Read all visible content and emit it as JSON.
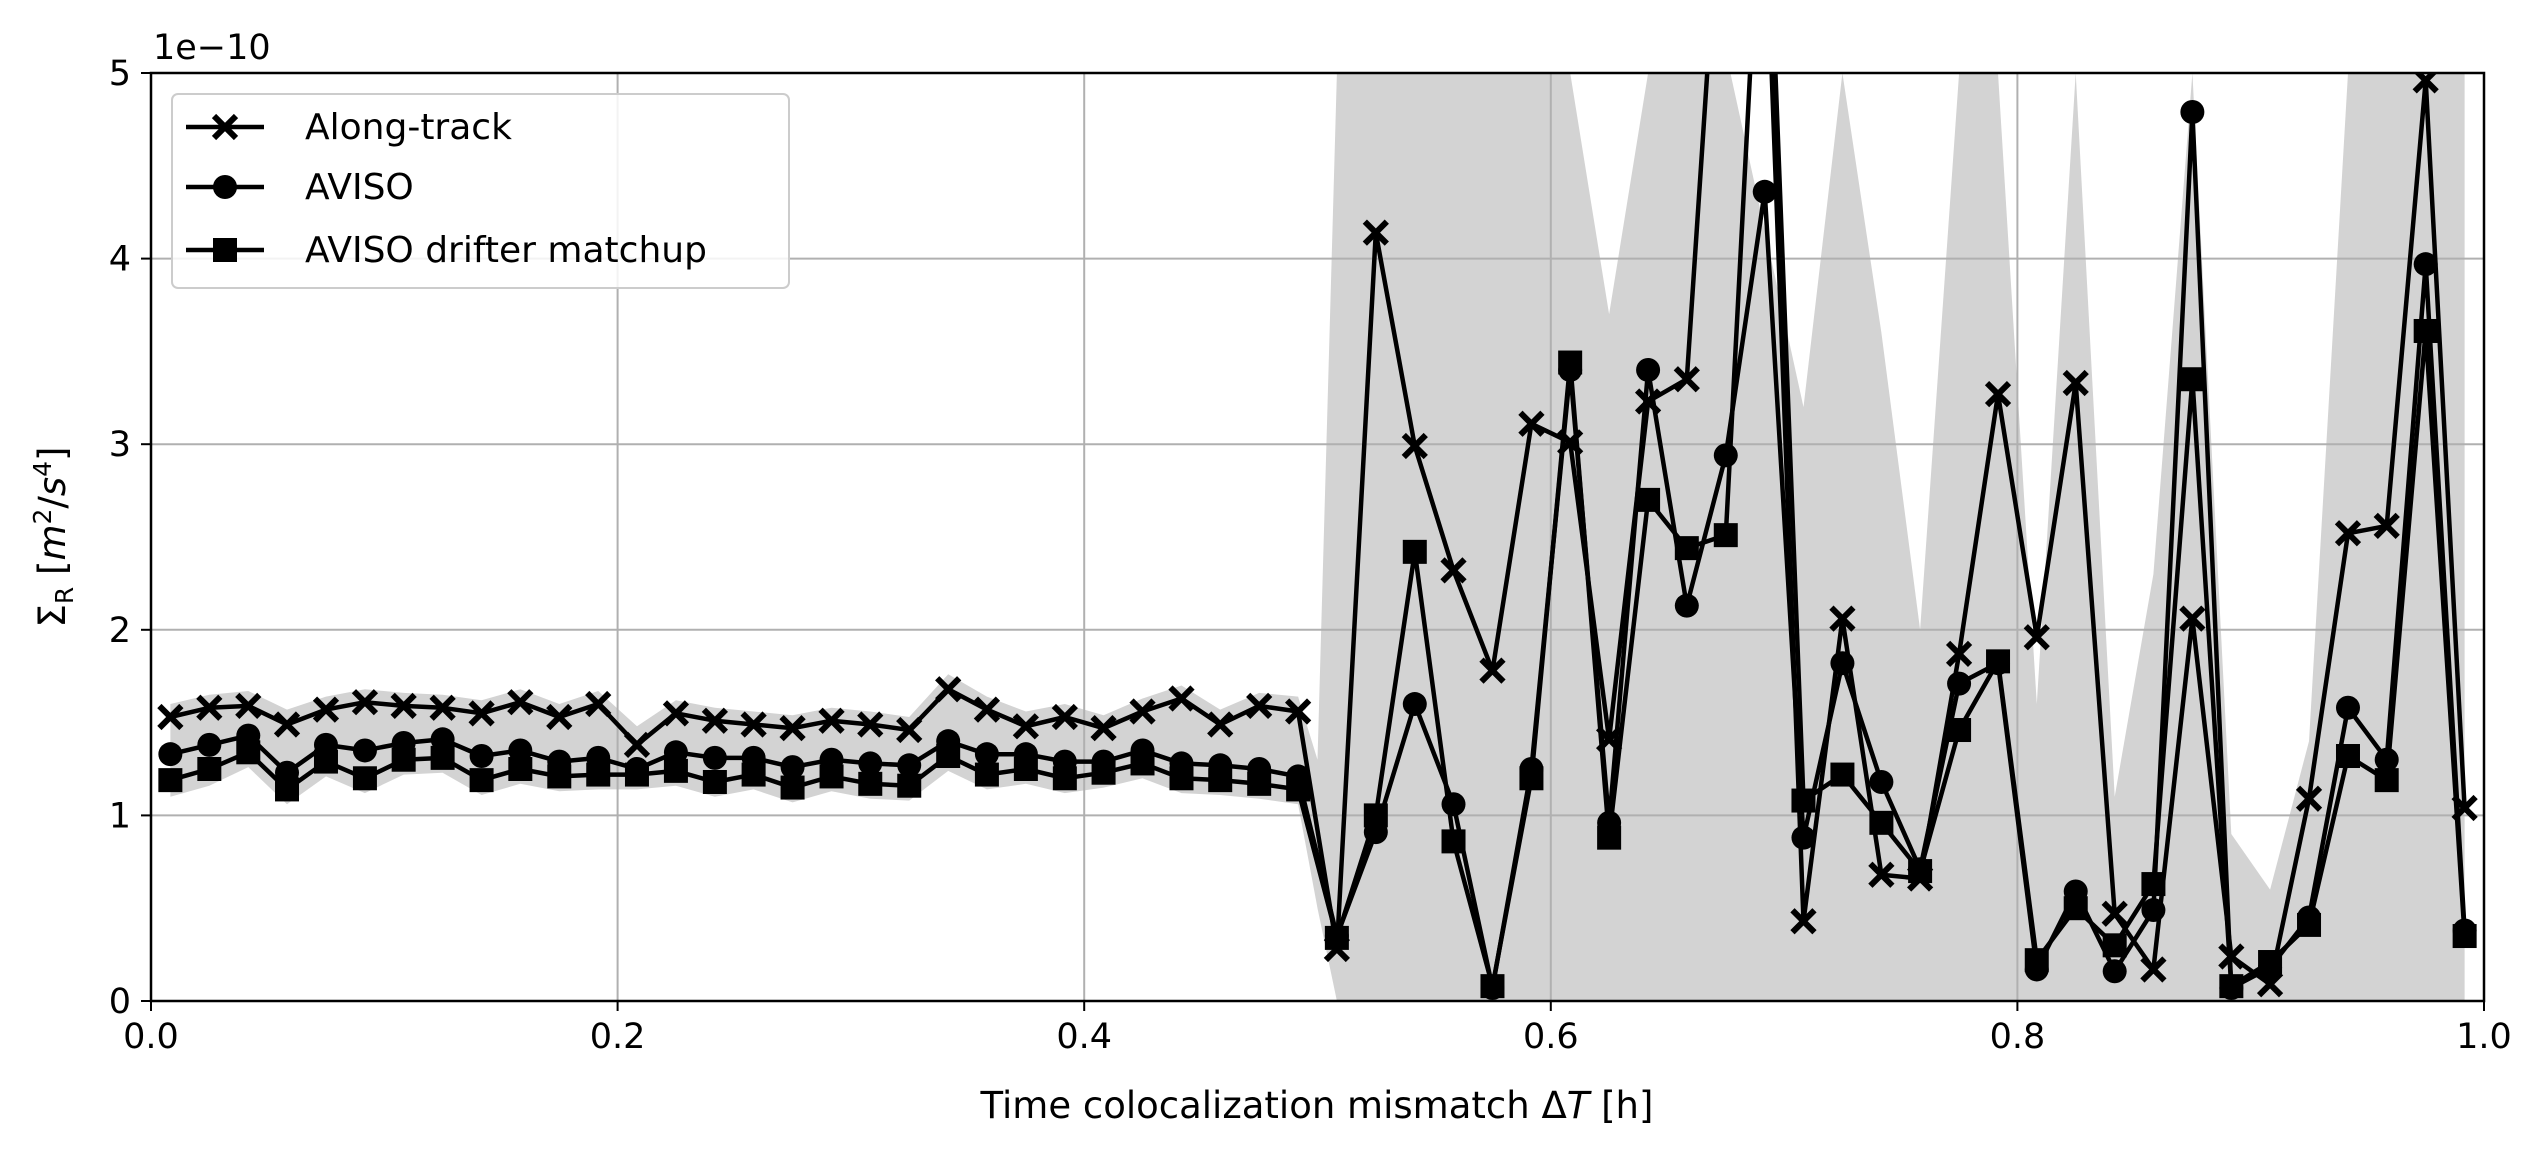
{
  "chart_data": {
    "type": "line",
    "title": "",
    "xlabel": "Time colocalization mismatch ΔT [h]",
    "ylabel": "Σ_R [m²/s⁴]",
    "ylabel_parts": {
      "main": "Σ",
      "sub": "R",
      "units_open": " [",
      "m": "m",
      "m_exp": "2",
      "slash": "/",
      "s": "s",
      "s_exp": "4",
      "units_close": "]"
    },
    "xlabel_parts": {
      "prefix": "Time colocalization mismatch ",
      "delta": "Δ",
      "T": "T",
      "suffix": " [h]"
    },
    "y_offset_text": "1e−10",
    "xlim": [
      0.0,
      1.0
    ],
    "ylim": [
      0,
      5
    ],
    "y_scale_multiplier": 1e-10,
    "xticks": [
      0.0,
      0.2,
      0.4,
      0.6,
      0.8,
      1.0
    ],
    "xtick_labels": [
      "0.0",
      "0.2",
      "0.4",
      "0.6",
      "0.8",
      "1.0"
    ],
    "yticks": [
      0,
      1,
      2,
      3,
      4,
      5
    ],
    "ytick_labels": [
      "0",
      "1",
      "2",
      "3",
      "4",
      "5"
    ],
    "grid": true,
    "legend_position": "top-left",
    "colors": {
      "line": "#000000",
      "band": "#d3d3d3",
      "grid": "#b0b0b0"
    },
    "x": [
      0.0083,
      0.025,
      0.0417,
      0.0583,
      0.075,
      0.0917,
      0.1083,
      0.125,
      0.1417,
      0.1583,
      0.175,
      0.1917,
      0.2083,
      0.225,
      0.2417,
      0.2583,
      0.275,
      0.2917,
      0.3083,
      0.325,
      0.3417,
      0.3583,
      0.375,
      0.3917,
      0.4083,
      0.425,
      0.4417,
      0.4583,
      0.475,
      0.4917,
      0.5083,
      0.525,
      0.5417,
      0.5583,
      0.575,
      0.5917,
      0.6083,
      0.625,
      0.6417,
      0.6583,
      0.675,
      0.6917,
      0.7083,
      0.725,
      0.7417,
      0.7583,
      0.775,
      0.7917,
      0.8083,
      0.825,
      0.8417,
      0.8583,
      0.875,
      0.8917,
      0.9083,
      0.925,
      0.9417,
      0.9583,
      0.975,
      0.9917
    ],
    "series": [
      {
        "name": "Along-track",
        "marker": "x",
        "values": [
          1.53,
          1.58,
          1.59,
          1.49,
          1.57,
          1.61,
          1.59,
          1.58,
          1.55,
          1.61,
          1.53,
          1.6,
          1.38,
          1.55,
          1.51,
          1.49,
          1.47,
          1.51,
          1.49,
          1.46,
          1.68,
          1.57,
          1.48,
          1.53,
          1.47,
          1.56,
          1.63,
          1.49,
          1.59,
          1.56,
          0.28,
          4.14,
          2.99,
          2.32,
          1.78,
          3.11,
          3.01,
          1.41,
          3.23,
          3.35,
          6.5,
          6.0,
          0.43,
          2.06,
          0.68,
          0.66,
          1.87,
          3.27,
          1.96,
          3.33,
          0.47,
          0.17,
          2.06,
          0.24,
          0.09,
          1.09,
          2.52,
          2.56,
          4.96,
          1.04
        ]
      },
      {
        "name": "AVISO",
        "marker": "o",
        "values": [
          1.33,
          1.38,
          1.43,
          1.23,
          1.38,
          1.35,
          1.39,
          1.41,
          1.32,
          1.35,
          1.29,
          1.31,
          1.25,
          1.34,
          1.31,
          1.31,
          1.26,
          1.3,
          1.28,
          1.27,
          1.4,
          1.33,
          1.33,
          1.29,
          1.29,
          1.35,
          1.28,
          1.27,
          1.25,
          1.21,
          0.35,
          0.91,
          1.6,
          1.06,
          0.07,
          1.25,
          3.4,
          0.96,
          3.4,
          2.13,
          2.94,
          4.36,
          0.88,
          1.82,
          1.18,
          0.71,
          1.71,
          1.82,
          0.17,
          0.59,
          0.16,
          0.49,
          4.79,
          0.07,
          0.18,
          0.45,
          1.58,
          1.3,
          3.97,
          0.38
        ]
      },
      {
        "name": "AVISO drifter matchup",
        "marker": "s",
        "values": [
          1.19,
          1.25,
          1.34,
          1.14,
          1.29,
          1.2,
          1.3,
          1.31,
          1.19,
          1.25,
          1.21,
          1.22,
          1.22,
          1.24,
          1.18,
          1.22,
          1.15,
          1.21,
          1.17,
          1.16,
          1.32,
          1.22,
          1.25,
          1.2,
          1.23,
          1.28,
          1.2,
          1.19,
          1.17,
          1.14,
          0.34,
          1.0,
          2.42,
          0.86,
          0.08,
          1.2,
          3.44,
          0.88,
          2.7,
          2.44,
          2.51,
          6.5,
          1.08,
          1.22,
          0.96,
          0.7,
          1.46,
          1.83,
          0.22,
          0.5,
          0.3,
          0.63,
          3.35,
          0.08,
          0.21,
          0.41,
          1.32,
          1.19,
          3.61,
          0.35
        ]
      }
    ],
    "band": {
      "x": [
        0.0083,
        0.025,
        0.0417,
        0.0583,
        0.075,
        0.0917,
        0.1083,
        0.125,
        0.1417,
        0.1583,
        0.175,
        0.1917,
        0.2083,
        0.225,
        0.2417,
        0.2583,
        0.275,
        0.2917,
        0.3083,
        0.325,
        0.3417,
        0.3583,
        0.375,
        0.3917,
        0.4083,
        0.425,
        0.4417,
        0.4583,
        0.475,
        0.4917,
        0.5,
        0.5083,
        0.525,
        0.5417,
        0.5583,
        0.575,
        0.5917,
        0.6083,
        0.625,
        0.6417,
        0.6583,
        0.675,
        0.677,
        0.7083,
        0.725,
        0.7417,
        0.7583,
        0.775,
        0.7917,
        0.8083,
        0.825,
        0.8417,
        0.8583,
        0.875,
        0.8917,
        0.9083,
        0.925,
        0.9417,
        0.9583,
        0.975,
        0.9917
      ],
      "upper": [
        1.6,
        1.65,
        1.67,
        1.57,
        1.64,
        1.68,
        1.66,
        1.65,
        1.62,
        1.68,
        1.6,
        1.67,
        1.48,
        1.62,
        1.58,
        1.56,
        1.54,
        1.58,
        1.56,
        1.53,
        1.76,
        1.64,
        1.56,
        1.6,
        1.54,
        1.63,
        1.7,
        1.57,
        1.66,
        1.64,
        1.3,
        5.0,
        5.0,
        5.0,
        5.0,
        5.0,
        5.0,
        5.0,
        3.7,
        5.0,
        5.0,
        5.0,
        5.0,
        3.2,
        5.0,
        3.6,
        2.0,
        5.0,
        5.0,
        1.6,
        5.0,
        1.1,
        2.3,
        5.0,
        0.9,
        0.6,
        1.4,
        5.0,
        5.0,
        5.0,
        5.0
      ],
      "lower": [
        1.1,
        1.16,
        1.26,
        1.06,
        1.21,
        1.12,
        1.22,
        1.23,
        1.11,
        1.17,
        1.13,
        1.14,
        1.14,
        1.16,
        1.1,
        1.14,
        1.07,
        1.13,
        1.09,
        1.08,
        1.24,
        1.14,
        1.17,
        1.12,
        1.15,
        1.2,
        1.12,
        1.11,
        1.09,
        1.06,
        0.5,
        0.0,
        0.0,
        0.0,
        0.0,
        0.0,
        0.0,
        0.0,
        0.0,
        0.0,
        0.0,
        0.0,
        0.0,
        0.0,
        0.0,
        0.0,
        0.0,
        0.0,
        0.0,
        0.0,
        0.0,
        0.0,
        0.0,
        0.0,
        0.0,
        0.0,
        0.0,
        0.0,
        0.0,
        0.0,
        0.0
      ]
    }
  }
}
